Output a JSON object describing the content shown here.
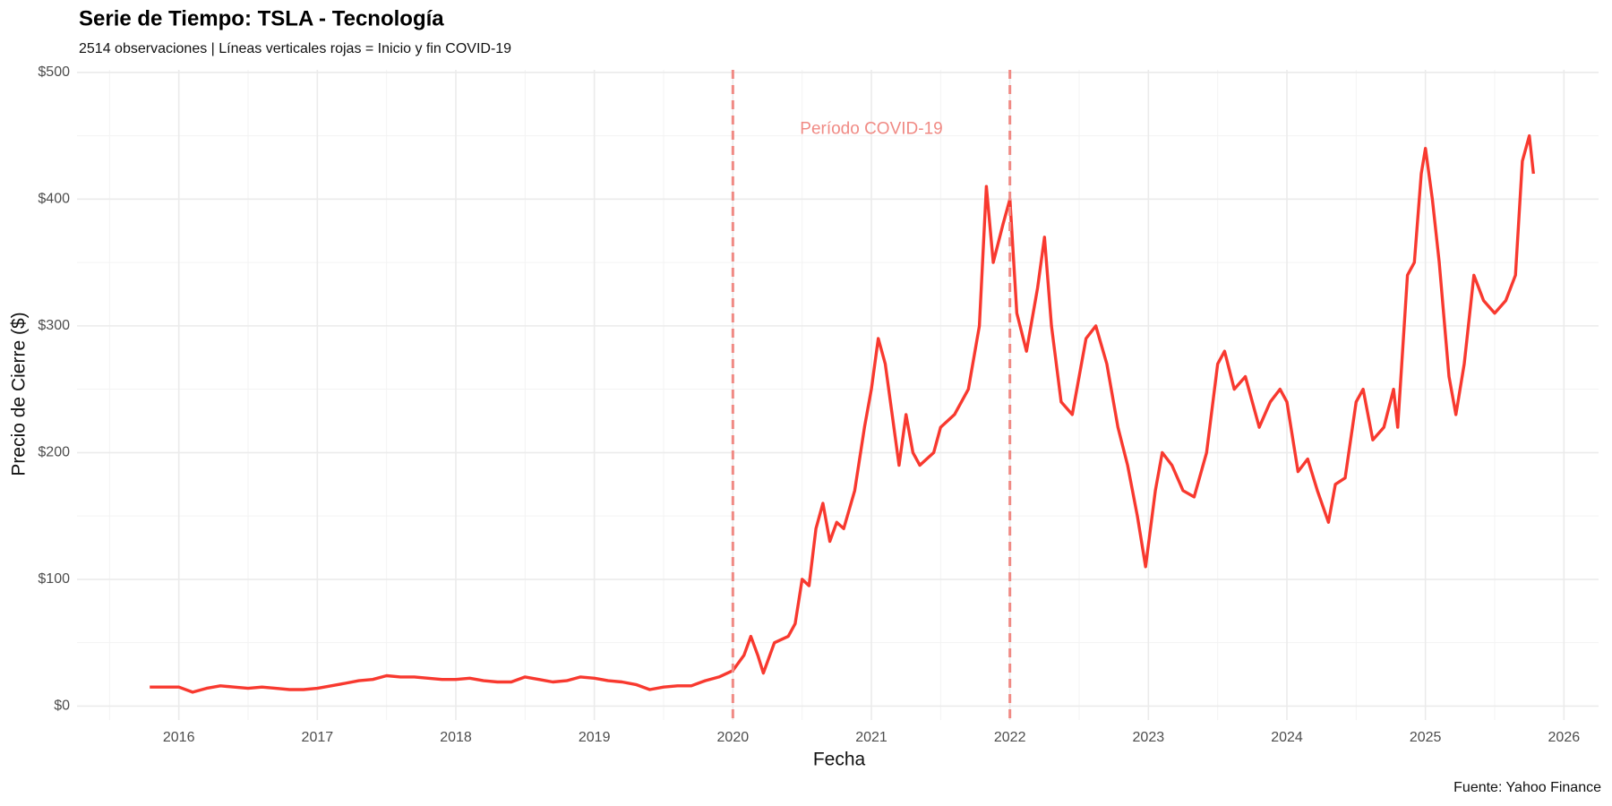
{
  "chart_data": {
    "type": "line",
    "title": "Serie de Tiempo: TSLA - Tecnología",
    "subtitle": "2514 observaciones | Líneas verticales rojas = Inicio y fin COVID-19",
    "x_label": "Fecha",
    "y_label": "Precio de Cierre ($)",
    "caption": "Fuente: Yahoo Finance",
    "annotation": {
      "text": "Período COVID-19",
      "x": 2021.0,
      "y": 455
    },
    "vlines": [
      2020,
      2022
    ],
    "vline_color": "#f08a84",
    "grid": true,
    "xlim": [
      2015.265,
      2026.25
    ],
    "ylim": [
      -11,
      502
    ],
    "xticks": [
      2016,
      2017,
      2018,
      2019,
      2020,
      2021,
      2022,
      2023,
      2024,
      2025,
      2026
    ],
    "yticks": [
      {
        "value": 0,
        "label": "$0"
      },
      {
        "value": 100,
        "label": "$100"
      },
      {
        "value": 200,
        "label": "$200"
      },
      {
        "value": 300,
        "label": "$300"
      },
      {
        "value": 400,
        "label": "$400"
      },
      {
        "value": 500,
        "label": "$500"
      }
    ],
    "series": [
      {
        "name": "TSLA",
        "color": "#f8392f",
        "x": [
          2015.79,
          2015.9,
          2016.0,
          2016.1,
          2016.2,
          2016.3,
          2016.4,
          2016.5,
          2016.6,
          2016.7,
          2016.8,
          2016.9,
          2017.0,
          2017.1,
          2017.2,
          2017.3,
          2017.4,
          2017.5,
          2017.6,
          2017.7,
          2017.8,
          2017.9,
          2018.0,
          2018.1,
          2018.2,
          2018.3,
          2018.4,
          2018.5,
          2018.6,
          2018.7,
          2018.8,
          2018.9,
          2019.0,
          2019.1,
          2019.2,
          2019.3,
          2019.4,
          2019.5,
          2019.6,
          2019.7,
          2019.8,
          2019.9,
          2020.0,
          2020.08,
          2020.13,
          2020.18,
          2020.22,
          2020.3,
          2020.4,
          2020.45,
          2020.5,
          2020.55,
          2020.6,
          2020.65,
          2020.7,
          2020.75,
          2020.8,
          2020.88,
          2020.95,
          2021.0,
          2021.05,
          2021.1,
          2021.15,
          2021.2,
          2021.25,
          2021.3,
          2021.35,
          2021.45,
          2021.5,
          2021.6,
          2021.7,
          2021.78,
          2021.83,
          2021.88,
          2021.95,
          2022.0,
          2022.05,
          2022.12,
          2022.2,
          2022.25,
          2022.3,
          2022.37,
          2022.45,
          2022.55,
          2022.62,
          2022.7,
          2022.78,
          2022.85,
          2022.92,
          2022.98,
          2023.05,
          2023.1,
          2023.17,
          2023.25,
          2023.33,
          2023.42,
          2023.5,
          2023.55,
          2023.62,
          2023.7,
          2023.8,
          2023.88,
          2023.95,
          2024.0,
          2024.08,
          2024.15,
          2024.22,
          2024.3,
          2024.35,
          2024.42,
          2024.5,
          2024.55,
          2024.62,
          2024.7,
          2024.77,
          2024.8,
          2024.87,
          2024.92,
          2024.97,
          2025.0,
          2025.05,
          2025.1,
          2025.17,
          2025.22,
          2025.28,
          2025.35,
          2025.42,
          2025.5,
          2025.58,
          2025.65,
          2025.7,
          2025.75,
          2025.78
        ],
        "values": [
          15,
          15,
          15,
          11,
          14,
          16,
          15,
          14,
          15,
          14,
          13,
          13,
          14,
          16,
          18,
          20,
          21,
          24,
          23,
          23,
          22,
          21,
          21,
          22,
          20,
          19,
          19,
          23,
          21,
          19,
          20,
          23,
          22,
          20,
          19,
          17,
          13,
          15,
          16,
          16,
          20,
          23,
          28,
          40,
          55,
          40,
          26,
          50,
          55,
          65,
          100,
          95,
          140,
          160,
          130,
          145,
          140,
          170,
          220,
          250,
          290,
          270,
          230,
          190,
          230,
          200,
          190,
          200,
          220,
          230,
          250,
          300,
          410,
          350,
          380,
          400,
          310,
          280,
          330,
          370,
          300,
          240,
          230,
          290,
          300,
          270,
          220,
          190,
          150,
          110,
          170,
          200,
          190,
          170,
          165,
          200,
          270,
          280,
          250,
          260,
          220,
          240,
          250,
          240,
          185,
          195,
          170,
          145,
          175,
          180,
          240,
          250,
          210,
          220,
          250,
          220,
          340,
          350,
          420,
          440,
          400,
          350,
          260,
          230,
          270,
          340,
          320,
          310,
          320,
          340,
          430,
          450,
          420
        ]
      }
    ]
  }
}
